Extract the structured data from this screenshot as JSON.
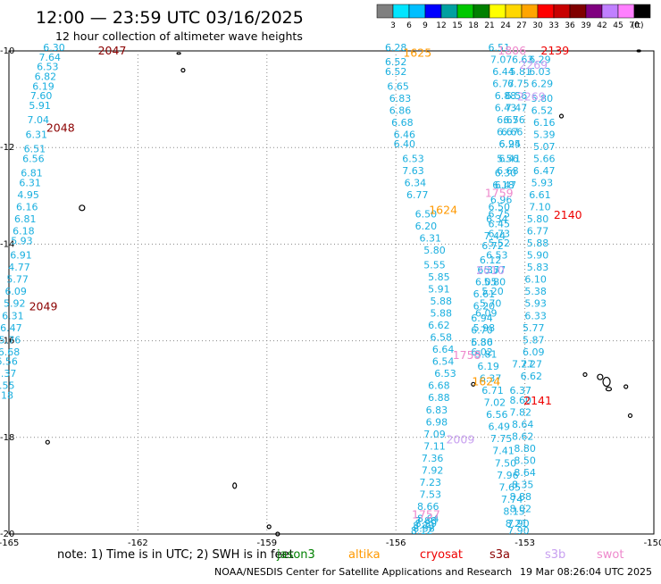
{
  "header": {
    "title": "12:00 — 23:59 UTC 03/16/2025",
    "subtitle": "12 hour collection of altimeter wave heights"
  },
  "colorbar": {
    "labels": [
      "3",
      "6",
      "9",
      "12",
      "15",
      "18",
      "21",
      "24",
      "27",
      "30",
      "33",
      "36",
      "39",
      "42",
      "45",
      "70"
    ],
    "unit": "(ft)",
    "colors": [
      "#808080",
      "#00e5ff",
      "#00bfff",
      "#0000ff",
      "#00a0a0",
      "#00c800",
      "#008000",
      "#ffff00",
      "#ffd700",
      "#ffa500",
      "#ff0000",
      "#c80000",
      "#800000",
      "#800080",
      "#c080ff",
      "#ff80ff",
      "#000000"
    ]
  },
  "axes": {
    "x_ticks": [
      "-165",
      "-162",
      "-159",
      "-156",
      "-153",
      "-150"
    ],
    "y_ticks": [
      "-10",
      "-12",
      "-14",
      "-16",
      "-18",
      "-20"
    ],
    "lon_range": [
      -165,
      -150
    ],
    "lat_range": [
      -20,
      -10
    ]
  },
  "tracks": [
    {
      "name": "track-west-saral",
      "color": "#1aafdf",
      "values": [
        "6.30",
        "7.64",
        "6.53",
        "6.82",
        "6.19",
        "7.60",
        "5.91",
        "7.04",
        "6.31",
        "6.51",
        "6.56",
        "6.81",
        "6.31",
        "4.95",
        "6.16",
        "6.81",
        "6.18",
        "5.93",
        "6.91",
        "4.77",
        "5.77",
        "6.09",
        "5.92",
        "6.31",
        "6.47",
        "5.76",
        "6.68",
        "6.56",
        "5.37",
        "5.55",
        "6.18"
      ],
      "lons": [
        -163.95,
        -164.05,
        -164.1,
        -164.15,
        -164.2,
        -164.25,
        -164.28,
        -164.32,
        -164.36,
        -164.4,
        -164.43,
        -164.47,
        -164.51,
        -164.55,
        -164.58,
        -164.62,
        -164.66,
        -164.7,
        -164.72,
        -164.76,
        -164.8,
        -164.84,
        -164.87,
        -164.91,
        -164.95,
        -164.98,
        -165.0,
        -165.05,
        -165.08,
        -165.12,
        -165.15
      ],
      "lats": [
        -10.0,
        -10.2,
        -10.4,
        -10.6,
        -10.8,
        -11.0,
        -11.2,
        -11.5,
        -11.8,
        -12.1,
        -12.3,
        -12.6,
        -12.8,
        -13.05,
        -13.3,
        -13.55,
        -13.8,
        -14.0,
        -14.3,
        -14.55,
        -14.8,
        -15.05,
        -15.3,
        -15.55,
        -15.8,
        -16.05,
        -16.3,
        -16.5,
        -16.75,
        -17.0,
        -17.2
      ]
    },
    {
      "name": "track-center-cryosat",
      "color": "#1aafdf",
      "values": [
        "6.28",
        "6.52",
        "6.52",
        "6.65",
        "6.83",
        "6.86",
        "6.68",
        "6.46",
        "6.40",
        "6.53",
        "7.63",
        "6.34",
        "6.77",
        "6.50",
        "6.20",
        "6.31",
        "5.80",
        "5.55",
        "5.85",
        "5.91",
        "5.88",
        "5.88",
        "6.62",
        "6.58",
        "6.64",
        "6.54",
        "6.53",
        "6.68",
        "6.88",
        "6.83",
        "6.98",
        "7.09",
        "7.11",
        "7.36",
        "7.92",
        "7.23",
        "7.53",
        "8.66",
        "8.64",
        "7.88",
        "8.59",
        "8.33",
        "8.58",
        "8.12"
      ],
      "lons": [
        -156.0,
        -156.0,
        -156.0,
        -155.95,
        -155.9,
        -155.9,
        -155.85,
        -155.8,
        -155.8,
        -155.6,
        -155.6,
        -155.55,
        -155.5,
        -155.3,
        -155.3,
        -155.2,
        -155.1,
        -155.1,
        -155.0,
        -155.0,
        -154.95,
        -154.95,
        -155.0,
        -154.95,
        -154.9,
        -154.9,
        -154.85,
        -155.0,
        -155.0,
        -155.05,
        -155.05,
        -155.1,
        -155.1,
        -155.15,
        -155.15,
        -155.2,
        -155.2,
        -155.25,
        -155.25,
        -155.3,
        -155.3,
        -155.35,
        -155.35,
        -155.4
      ],
      "lats": [
        -10.0,
        -10.3,
        -10.5,
        -10.8,
        -11.05,
        -11.3,
        -11.55,
        -11.8,
        -12.0,
        -12.3,
        -12.55,
        -12.8,
        -13.05,
        -13.45,
        -13.7,
        -13.95,
        -14.2,
        -14.5,
        -14.75,
        -15.0,
        -15.25,
        -15.5,
        -15.75,
        -16.0,
        -16.25,
        -16.5,
        -16.75,
        -17.0,
        -17.25,
        -17.5,
        -17.75,
        -18.0,
        -18.25,
        -18.5,
        -18.75,
        -19.0,
        -19.25,
        -19.5,
        -19.75,
        -19.8,
        -19.85,
        -19.9,
        -19.95,
        -20.0
      ]
    },
    {
      "name": "track-center-jason",
      "color": "#1aafdf",
      "values": [
        "6.51",
        "7.07",
        "6.44",
        "6.77",
        "6.88",
        "6.43",
        "6.67",
        "6.67",
        "6.94",
        "6.41",
        "6.68",
        "6.47",
        "6.50",
        "6.34",
        "7.44",
        "6.72",
        "6.12",
        "6.35",
        "6.05",
        "6.61",
        "6.20",
        "6.94",
        "6.70",
        "6.30",
        "5.81",
        "6.19",
        "6.37",
        "6.71",
        "7.02",
        "6.56",
        "6.49",
        "7.75",
        "7.41",
        "7.50",
        "7.96",
        "7.65",
        "7.74",
        "8.15",
        "8.21",
        "7.90"
      ],
      "lons": [
        -153.6,
        -153.55,
        -153.5,
        -153.5,
        -153.45,
        -153.45,
        -153.4,
        -153.4,
        -153.35,
        -153.35,
        -153.4,
        -153.45,
        -153.6,
        -153.65,
        -153.7,
        -153.75,
        -153.8,
        -153.85,
        -153.9,
        -153.95,
        -153.95,
        -154.0,
        -154.0,
        -154.0,
        -153.9,
        -153.85,
        -153.8,
        -153.75,
        -153.7,
        -153.65,
        -153.6,
        -153.55,
        -153.5,
        -153.45,
        -153.4,
        -153.35,
        -153.3,
        -153.25,
        -153.2,
        -153.15
      ],
      "lats": [
        -10.0,
        -10.25,
        -10.5,
        -10.75,
        -11.0,
        -11.25,
        -11.5,
        -11.75,
        -12.0,
        -12.3,
        -12.55,
        -12.85,
        -13.3,
        -13.55,
        -13.9,
        -14.1,
        -14.4,
        -14.6,
        -14.85,
        -15.1,
        -15.35,
        -15.6,
        -15.85,
        -16.1,
        -16.35,
        -16.6,
        -16.85,
        -17.1,
        -17.35,
        -17.6,
        -17.85,
        -18.1,
        -18.35,
        -18.6,
        -18.85,
        -19.1,
        -19.35,
        -19.6,
        -19.85,
        -20.0
      ]
    },
    {
      "name": "track-east-s3a",
      "color": "#1aafdf",
      "values": [
        "6.63",
        "5.81",
        "6.75",
        "6.56",
        "7.47",
        "6.56",
        "6.66",
        "6.25",
        "5.56",
        "6.30",
        "6.18",
        "6.96",
        "6.75",
        "6.45",
        "6.73",
        "5.52",
        "6.53",
        "5.77",
        "5.80",
        "5.20",
        "5.70",
        "6.09",
        "5.98",
        "5.86",
        "6.02",
        "7.27",
        "6.37",
        "8.60",
        "7.82",
        "8.64",
        "8.62",
        "8.80",
        "8.50",
        "8.64",
        "8.35",
        "8.88",
        "8.02",
        "7.90"
      ],
      "lons": [
        -153.05,
        -153.1,
        -153.15,
        -153.2,
        -153.2,
        -153.25,
        -153.3,
        -153.35,
        -153.4,
        -153.45,
        -153.5,
        -153.55,
        -153.6,
        -153.6,
        -153.6,
        -153.6,
        -153.65,
        -153.7,
        -153.7,
        -153.75,
        -153.8,
        -153.9,
        -153.95,
        -154.0,
        -154.0,
        -153.05,
        -153.1,
        -153.1,
        -153.1,
        -153.05,
        -153.05,
        -153.0,
        -153.0,
        -153.0,
        -153.05,
        -153.1,
        -153.1,
        -153.15
      ],
      "lats": [
        -10.25,
        -10.5,
        -10.75,
        -11.0,
        -11.25,
        -11.5,
        -11.75,
        -12.0,
        -12.3,
        -12.6,
        -12.85,
        -13.15,
        -13.45,
        -13.65,
        -13.85,
        -14.05,
        -14.3,
        -14.6,
        -14.85,
        -15.05,
        -15.3,
        -15.5,
        -15.8,
        -16.1,
        -16.3,
        -16.55,
        -17.1,
        -17.3,
        -17.55,
        -17.8,
        -18.05,
        -18.3,
        -18.55,
        -18.8,
        -19.05,
        -19.3,
        -19.55,
        -19.85
      ]
    },
    {
      "name": "track-east-s3b",
      "color": "#1aafdf",
      "values": [
        "6.29",
        "6.03",
        "6.29",
        "5.80",
        "6.52",
        "6.16",
        "5.39",
        "5.07",
        "5.66",
        "6.47",
        "5.93",
        "6.61",
        "7.10",
        "5.80",
        "6.77",
        "5.88",
        "5.90",
        "5.83",
        "6.10",
        "5.38",
        "5.93",
        "6.33",
        "5.77",
        "5.87",
        "6.09",
        "7.27",
        "6.62"
      ],
      "lons": [
        -152.65,
        -152.65,
        -152.6,
        -152.6,
        -152.6,
        -152.55,
        -152.55,
        -152.55,
        -152.55,
        -152.55,
        -152.6,
        -152.65,
        -152.65,
        -152.7,
        -152.7,
        -152.7,
        -152.7,
        -152.7,
        -152.75,
        -152.75,
        -152.75,
        -152.75,
        -152.8,
        -152.8,
        -152.8,
        -152.85,
        -152.85
      ],
      "lats": [
        -10.25,
        -10.5,
        -10.75,
        -11.05,
        -11.3,
        -11.55,
        -11.8,
        -12.05,
        -12.3,
        -12.55,
        -12.8,
        -13.05,
        -13.3,
        -13.55,
        -13.8,
        -14.05,
        -14.3,
        -14.55,
        -14.8,
        -15.05,
        -15.3,
        -15.55,
        -15.8,
        -16.05,
        -16.3,
        -16.55,
        -16.8
      ]
    }
  ],
  "pass_labels": [
    {
      "text": "2047",
      "color": "#8b0000",
      "lon": -162.6,
      "lat": -10.0
    },
    {
      "text": "2048",
      "color": "#8b0000",
      "lon": -163.8,
      "lat": -11.6
    },
    {
      "text": "2049",
      "color": "#8b0000",
      "lon": -164.2,
      "lat": -15.3
    },
    {
      "text": "1625",
      "color": "#ff9900",
      "lon": -155.5,
      "lat": -10.05
    },
    {
      "text": "1806",
      "color": "#ee88cc",
      "lon": -153.3,
      "lat": -10.0
    },
    {
      "text": "2139",
      "color": "#ee0000",
      "lon": -152.3,
      "lat": -10.0
    },
    {
      "text": "2269",
      "color": "#c8a0f0",
      "lon": -152.8,
      "lat": -10.3
    },
    {
      "text": "2269",
      "color": "#c8a0f0",
      "lon": -152.85,
      "lat": -10.95
    },
    {
      "text": "1759",
      "color": "#ee88cc",
      "lon": -153.6,
      "lat": -12.95
    },
    {
      "text": "1624",
      "color": "#ff9900",
      "lon": -154.9,
      "lat": -13.3
    },
    {
      "text": "2140",
      "color": "#ee0000",
      "lon": -152.0,
      "lat": -13.4
    },
    {
      "text": "2010",
      "color": "#c8a0f0",
      "lon": -153.8,
      "lat": -14.55
    },
    {
      "text": "1758",
      "color": "#ee88cc",
      "lon": -154.35,
      "lat": -16.3
    },
    {
      "text": "1624",
      "color": "#ff9900",
      "lon": -153.9,
      "lat": -16.85
    },
    {
      "text": "2141",
      "color": "#ee0000",
      "lon": -152.7,
      "lat": -17.25
    },
    {
      "text": "2009",
      "color": "#c8a0f0",
      "lon": -154.5,
      "lat": -18.05
    },
    {
      "text": "1757",
      "color": "#ee88cc",
      "lon": -155.3,
      "lat": -19.6
    }
  ],
  "legend": {
    "note": "note:  1) Time is in UTC; 2) SWH is in feet",
    "missions": [
      {
        "label": "jason3",
        "color": "#008000"
      },
      {
        "label": "altika",
        "color": "#ff9900"
      },
      {
        "label": "cryosat",
        "color": "#ee0000"
      },
      {
        "label": "s3a",
        "color": "#8b0000"
      },
      {
        "label": "s3b",
        "color": "#c8a0f0"
      },
      {
        "label": "swot",
        "color": "#ee88cc"
      }
    ]
  },
  "footer": {
    "credit": "NOAA/NESDIS Center for Satellite Applications and Research",
    "timestamp": "19 Mar 08:26:04 UTC 2025"
  }
}
